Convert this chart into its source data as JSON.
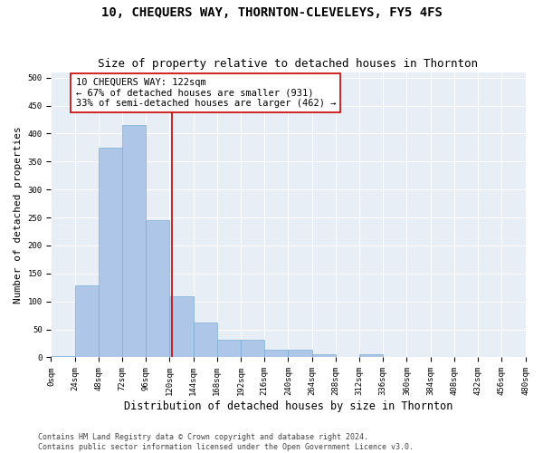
{
  "title": "10, CHEQUERS WAY, THORNTON-CLEVELEYS, FY5 4FS",
  "subtitle": "Size of property relative to detached houses in Thornton",
  "xlabel": "Distribution of detached houses by size in Thornton",
  "ylabel": "Number of detached properties",
  "bin_edges": [
    0,
    24,
    48,
    72,
    96,
    120,
    144,
    168,
    192,
    216,
    240,
    264,
    288,
    312,
    336,
    360,
    384,
    408,
    432,
    456,
    480
  ],
  "bar_heights": [
    3,
    128,
    375,
    415,
    245,
    110,
    63,
    31,
    31,
    14,
    14,
    6,
    1,
    5,
    0,
    0,
    0,
    0,
    0,
    1
  ],
  "bar_color": "#aec6e8",
  "bar_edge_color": "#7aaed4",
  "bg_color": "#e8eef6",
  "grid_color": "#ffffff",
  "fig_bg_color": "#ffffff",
  "vline_x": 122,
  "vline_color": "#cc0000",
  "annotation_text": "10 CHEQUERS WAY: 122sqm\n← 67% of detached houses are smaller (931)\n33% of semi-detached houses are larger (462) →",
  "annotation_box_color": "#ffffff",
  "annotation_box_edge_color": "#cc0000",
  "footer_text": "Contains HM Land Registry data © Crown copyright and database right 2024.\nContains public sector information licensed under the Open Government Licence v3.0.",
  "ylim": [
    0,
    510
  ],
  "yticks": [
    0,
    50,
    100,
    150,
    200,
    250,
    300,
    350,
    400,
    450,
    500
  ],
  "title_fontsize": 10,
  "subtitle_fontsize": 9,
  "ylabel_fontsize": 8,
  "xlabel_fontsize": 8.5,
  "tick_fontsize": 6.5,
  "annotation_fontsize": 7.5,
  "footer_fontsize": 6.0
}
